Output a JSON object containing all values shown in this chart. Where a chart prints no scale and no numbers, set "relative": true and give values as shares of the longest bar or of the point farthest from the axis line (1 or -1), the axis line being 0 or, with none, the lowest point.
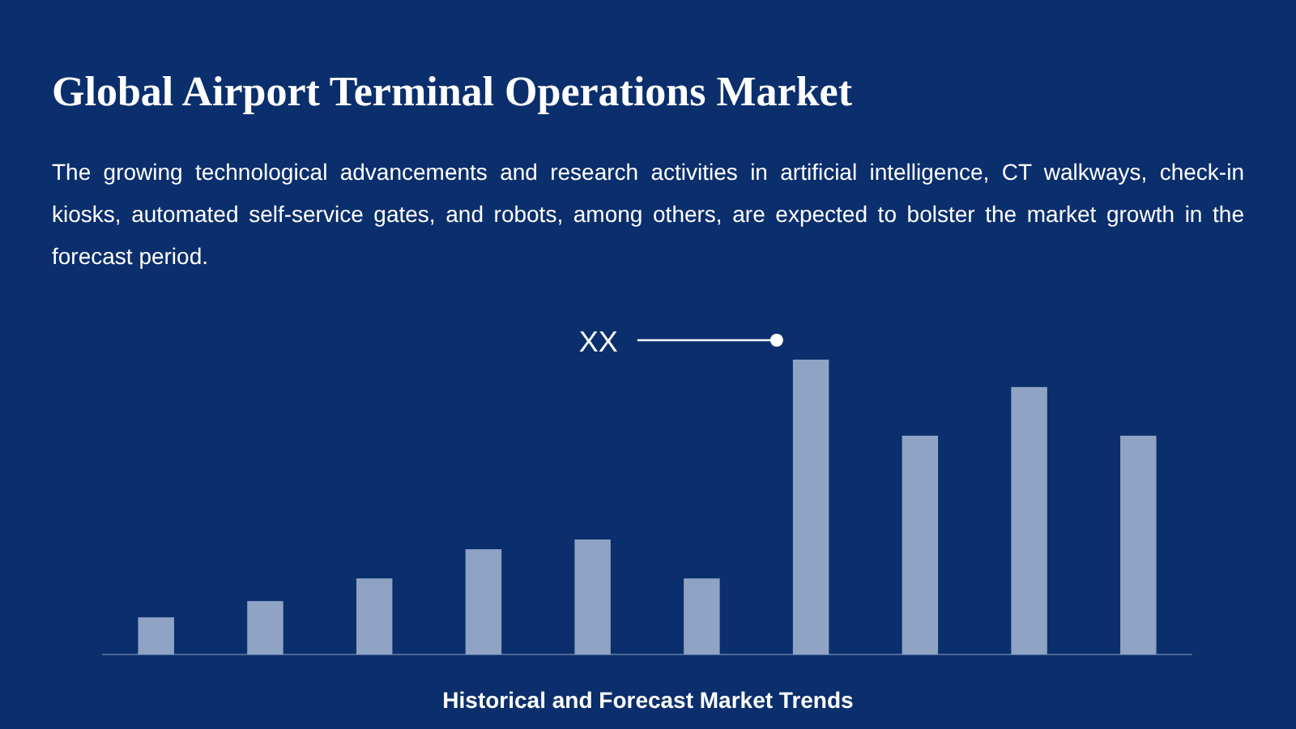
{
  "chart_data": {
    "type": "bar",
    "title": "Global Airport Terminal Operations Market",
    "subtitle": "The growing technological advancements and research activities in artificial intelligence, CT walkways, check-in kiosks, automated self-service gates, and robots, among others, are expected to bolster the market growth in the forecast period.",
    "xlabel": "Historical and Forecast Market Trends",
    "relative": true,
    "categories": [
      null,
      null,
      null,
      null,
      null,
      null,
      null,
      null,
      null,
      null
    ],
    "values": [
      0.126,
      0.181,
      0.258,
      0.357,
      0.39,
      0.258,
      1,
      0.742,
      0.907,
      0.742
    ],
    "color": "#8fa3c4",
    "annotations": [
      "XX"
    ]
  }
}
